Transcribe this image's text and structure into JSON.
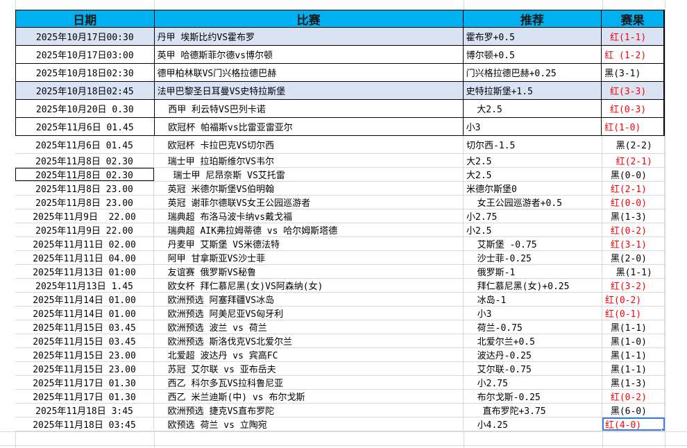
{
  "headers": [
    "日期",
    "比赛",
    "推荐",
    "赛果"
  ],
  "colors": {
    "header_bg": "#00b0f0",
    "highlight_row": "#dae3f3",
    "win": "#ff0000",
    "loss": "#000000",
    "selection": "#3b7ddd"
  },
  "rows": [
    {
      "date": "2025年10月17日00:30",
      "match": "丹甲 埃斯比约VS霍布罗",
      "tip": "霍布罗+0.5",
      "result": " 红(1-1)",
      "win": true
    },
    {
      "date": "2025年10月17日03:00",
      "match": "英甲 哈德斯菲尔德vs博尔顿",
      "tip": "博尔顿+0.5",
      "result": "红 (1-2)",
      "win": true
    },
    {
      "date": "2025年10月18日02:30",
      "match": "德甲柏林联VS门兴格拉德巴赫",
      "tip": "门兴格拉德巴赫+0.25",
      "result": "黑(3-1)",
      "win": false
    },
    {
      "date": "2025年10月18日02:45",
      "match": "法甲巴黎圣日耳曼VS史特拉斯堡",
      "tip": "史特拉斯堡+1.5",
      "result": " 红(3-3)",
      "win": true
    },
    {
      "date": "2025年10月20日 0.30",
      "match": "  西甲 利云特VS巴列卡诺",
      "tip": "  大2.5",
      "result": " 红(0-3)",
      "win": true
    },
    {
      "date": "2025年11月6日 01.45",
      "match": "  欧冠杯 帕福斯vs比雷亚雷亚尔",
      "tip": "小3",
      "result": "红(1-0)",
      "win": true
    },
    {
      "date": "2025年11月6日 01.45",
      "match": "  欧冠杯 卡拉巴克VS切尔西",
      "tip": "切尔西-1.5",
      "result": "  黑(2-2)",
      "win": false
    },
    {
      "date": "2025年11月8日 02.30",
      "match": "  瑞士甲 拉珀斯维尔VS韦尔",
      "tip": "大2.5",
      "result": "  红(2-1)",
      "win": true
    },
    {
      "date": "2025年11月8日 02.30",
      "match": "   瑞士甲 尼昂奈斯 VS艾托雷",
      "tip": "大2.5",
      "result": " 黑(0-0)",
      "win": false
    },
    {
      "date": "2025年11月8日 23.00",
      "match": "  英冠 米德尔斯堡VS伯明翰",
      "tip": "米德尔斯堡0",
      "result": " 红(2-1)",
      "win": true
    },
    {
      "date": "2025年11月8日 23.00",
      "match": "  英冠 谢菲尔德联VS女王公园巡游者",
      "tip": "  女王公园巡游者+0.5",
      "result": " 红(0-0)",
      "win": true
    },
    {
      "date": "2025年11月9日  22.00",
      "match": "  瑞典超 布洛马波卡纳vs戴戈福",
      "tip": "小2.75",
      "result": " 黑(1-3)",
      "win": false
    },
    {
      "date": "2025年11月9日 22.00",
      "match": "  瑞典超 AIK弗拉姆蒂德 vs 哈尔姆斯塔德",
      "tip": "小2.5",
      "result": " 红(0-2)",
      "win": true
    },
    {
      "date": "2025年11月11日 02.00",
      "match": "  丹麦甲 艾斯堡 VS米德法特",
      "tip": "  艾斯堡 -0.75",
      "result": " 红(3-1)",
      "win": true
    },
    {
      "date": "2025年11月11日 04.00",
      "match": "  阿甲 甘拿斯亚VS沙士菲",
      "tip": "  沙士菲-0.25",
      "result": " 黑(2-0)",
      "win": false
    },
    {
      "date": "2025年11月13日 01:00",
      "match": "  友谊赛 俄罗斯VS秘鲁",
      "tip": "  俄罗斯-1",
      "result": "  黑(1-1)",
      "win": false
    },
    {
      "date": "2025年11月13日 1.45",
      "match": "  欧女杯 拜仁慕尼黑(女)VS阿森纳(女)",
      "tip": "  拜仁慕尼黑(女)+0.25",
      "result": " 红(3-2)",
      "win": true
    },
    {
      "date": "2025年11月14日 01.00",
      "match": "  欧洲预选 阿塞拜疆VS冰岛",
      "tip": "  冰岛-1",
      "result": "红(0-2)",
      "win": true
    },
    {
      "date": "2025年11月14日 01.00",
      "match": "  欧洲预选 阿美尼亚VS匈牙利",
      "tip": "  小3",
      "result": "红(0-1)",
      "win": true
    },
    {
      "date": "2025年11月15日 03.45",
      "match": "  欧洲预选 波兰 vs 荷兰",
      "tip": "  荷兰-0.75",
      "result": " 黑(1-1)",
      "win": false
    },
    {
      "date": "2025年11月15日 03.45",
      "match": "  欧洲预选 斯洛伐克VS北爱尔兰",
      "tip": "  北爱尔兰+0.5",
      "result": " 黑(1-0)",
      "win": false
    },
    {
      "date": "2025年11月15日 23.00",
      "match": "  北爱超 波达丹 vs 宾高FC",
      "tip": "  波达丹-0.25",
      "result": " 黑(1-1)",
      "win": false
    },
    {
      "date": "2025年11月15日 23.00",
      "match": "  苏冠 艾尔联 vs 亚布岳夫",
      "tip": "  艾尔联-0.75",
      "result": " 黑(1-1)",
      "win": false
    },
    {
      "date": "2025年11月17日 01.30",
      "match": "  西乙 科尔多瓦VS拉科鲁尼亚",
      "tip": "  小2.75",
      "result": " 黑(1-3)",
      "win": false
    },
    {
      "date": "2025年11月17日 01.30",
      "match": "  西乙 米兰迪斯(中) vs 布尔戈斯",
      "tip": "  布尔戈斯-0.25",
      "result": " 红(0-2)",
      "win": true
    },
    {
      "date": "2025年11月18日 3:45",
      "match": "  欧洲预选 捷克VS直布罗陀",
      "tip": "   直布罗陀+3.75",
      "result": " 黑(6-0)",
      "win": false
    },
    {
      "date": "2025年11月18日 03:45",
      "match": "  欧预选 荷兰 vs 立陶宛",
      "tip": "  小4.25",
      "result": "红(4-0)",
      "win": true
    }
  ]
}
